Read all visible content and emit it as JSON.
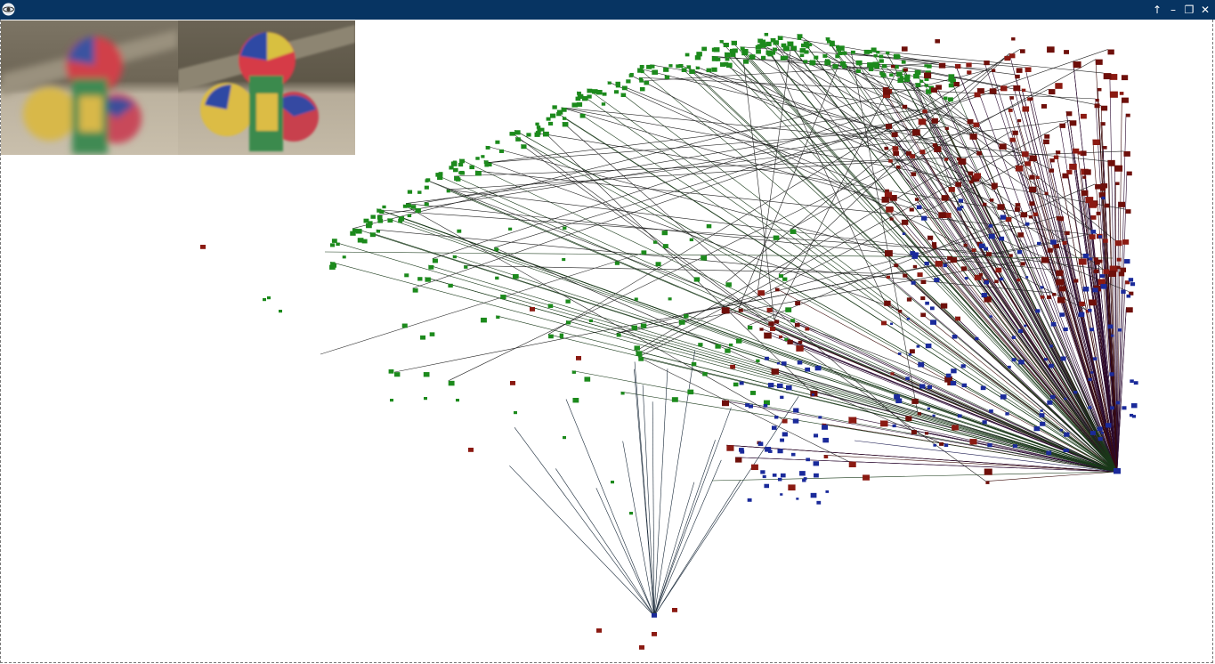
{
  "window": {
    "title": "",
    "app_icon": "globe-app-icon",
    "controls": {
      "up": "↑",
      "minimize": "–",
      "restore": "❐",
      "close": "✕"
    }
  },
  "thumbnails": [
    {
      "name": "blurred-image",
      "icon": "juggling-balls-image"
    },
    {
      "name": "sharp-image",
      "icon": "juggling-balls-image"
    }
  ],
  "scatter": {
    "colors": {
      "green": "#1c8a1c",
      "red": "#8b1a12",
      "blue": "#1a2a9a",
      "dark": "#3a0a08"
    },
    "hubs": [
      {
        "name": "hub-right",
        "x": 1255,
        "y": 530
      },
      {
        "name": "hub-bottom",
        "x": 735,
        "y": 692
      }
    ]
  }
}
